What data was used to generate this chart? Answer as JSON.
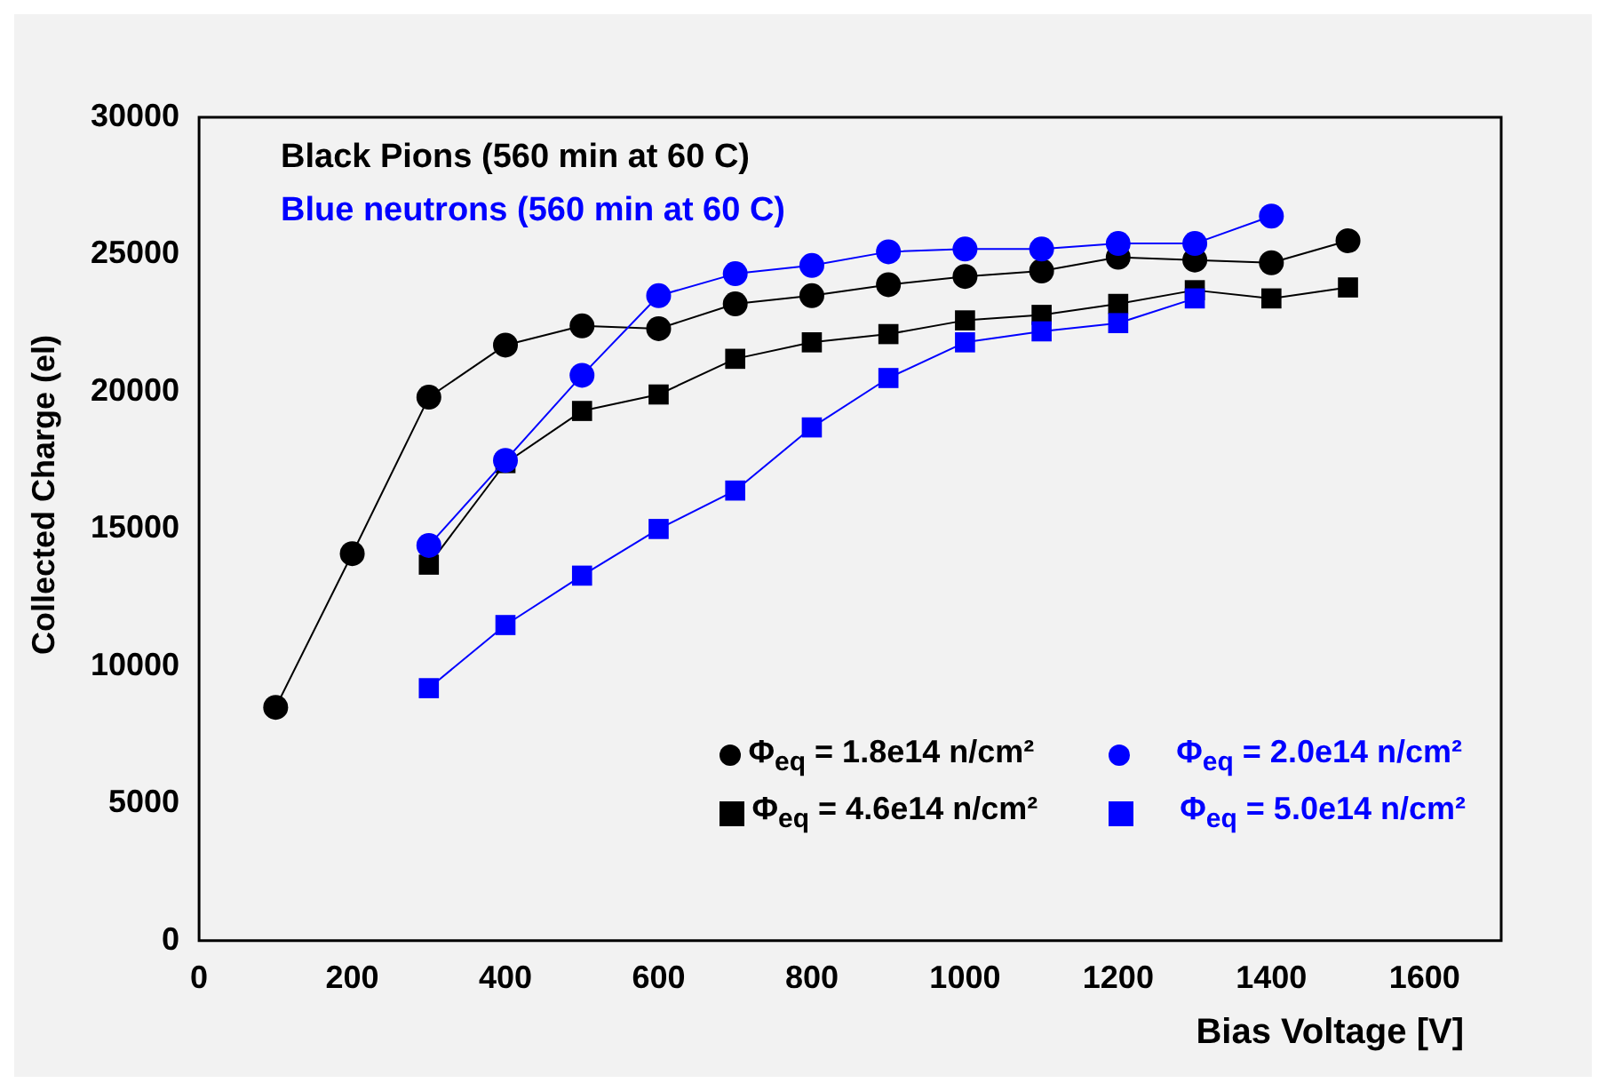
{
  "chart_data": {
    "type": "line",
    "xlabel": "Bias Voltage [V]",
    "ylabel": "Collected Charge (el)",
    "annotations": [
      "Black Pions (560 min at 60 C)",
      "Blue neutrons (560 min at 60 C)"
    ],
    "xlim": [
      0,
      1700
    ],
    "xticks": [
      0,
      200,
      400,
      600,
      800,
      1000,
      1200,
      1400,
      1600
    ],
    "ylim": [
      0,
      30000
    ],
    "yticks": [
      0,
      5000,
      10000,
      15000,
      20000,
      25000,
      30000
    ],
    "grid": false,
    "legend": "bottom right",
    "series": [
      {
        "name": "Φ$_{eq}$ = 1.8e14 n/cm²",
        "color": "#000000",
        "marker": "circle",
        "x": [
          100,
          200,
          300,
          400,
          500,
          600,
          700,
          800,
          900,
          1000,
          1100,
          1200,
          1300,
          1400,
          1500
        ],
        "values": [
          8500,
          14100,
          19800,
          21700,
          22400,
          22300,
          23200,
          23500,
          23900,
          24200,
          24400,
          24900,
          24800,
          24700,
          25500
        ]
      },
      {
        "name": "Φ$_{eq}$ = 4.6e14 n/cm²",
        "color": "#000000",
        "marker": "square",
        "x": [
          300,
          400,
          500,
          600,
          700,
          800,
          900,
          1000,
          1100,
          1200,
          1300,
          1400,
          1500
        ],
        "values": [
          13700,
          17400,
          19300,
          19900,
          21200,
          21800,
          22100,
          22600,
          22800,
          23200,
          23700,
          23400,
          23800
        ]
      },
      {
        "name": "Φ$_{eq}$ = 2.0e14 n/cm²",
        "color": "#0000ff",
        "marker": "circle",
        "x": [
          300,
          400,
          500,
          600,
          700,
          800,
          900,
          1000,
          1100,
          1200,
          1300,
          1400
        ],
        "values": [
          14400,
          17500,
          20600,
          23500,
          24300,
          24600,
          25100,
          25200,
          25200,
          25400,
          25400,
          26400
        ]
      },
      {
        "name": "Φ$_{eq}$ = 5.0e14 n/cm²",
        "color": "#0000ff",
        "marker": "square",
        "x": [
          300,
          400,
          500,
          600,
          700,
          800,
          900,
          1000,
          1100,
          1200,
          1300
        ],
        "values": [
          9200,
          11500,
          13300,
          15000,
          16400,
          18700,
          20500,
          21800,
          22200,
          22500,
          23400
        ]
      }
    ]
  }
}
